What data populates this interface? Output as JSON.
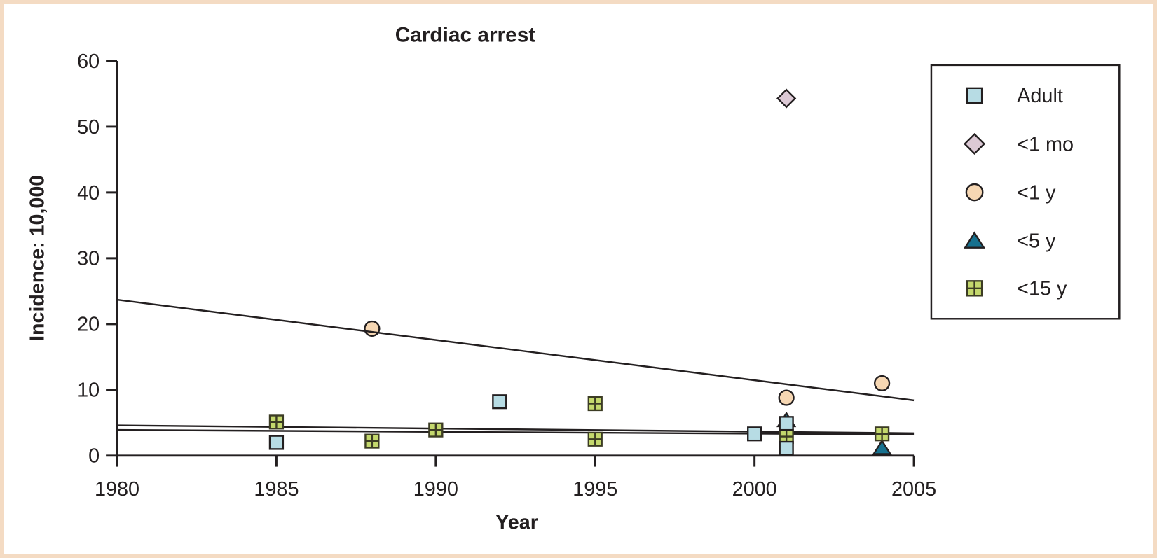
{
  "figure": {
    "frame_color": "#f4dbc3",
    "background": "#ffffff",
    "ink_color": "#231f20"
  },
  "chart_data": {
    "type": "scatter",
    "title": "Cardiac arrest",
    "xlabel": "Year",
    "ylabel": "Incidence: 10,000",
    "xlim": [
      1980,
      2005
    ],
    "ylim": [
      0,
      60
    ],
    "xticks": [
      "1980",
      "1985",
      "1990",
      "1995",
      "2000",
      "2005"
    ],
    "yticks": [
      "0",
      "10",
      "20",
      "30",
      "40",
      "50",
      "60"
    ],
    "grid": false,
    "legend_position": "top-right",
    "series": [
      {
        "name": "Adult",
        "marker": "square",
        "fill": "#b7dce4",
        "stroke": "#231f20",
        "points": [
          [
            1985,
            2.0
          ],
          [
            1992,
            8.2
          ],
          [
            2000,
            3.3
          ],
          [
            2001,
            4.9
          ],
          [
            2001,
            1.1
          ]
        ]
      },
      {
        "name": "<1 mo",
        "marker": "diamond",
        "fill": "#dcc9d5",
        "stroke": "#231f20",
        "points": [
          [
            2001,
            54.3
          ]
        ]
      },
      {
        "name": "<1 y",
        "marker": "circle",
        "fill": "#f6d7b3",
        "stroke": "#231f20",
        "points": [
          [
            1988,
            19.3
          ],
          [
            2001,
            8.8
          ],
          [
            2004,
            11.0
          ]
        ]
      },
      {
        "name": "<5 y",
        "marker": "triangle",
        "fill": "#17718f",
        "stroke": "#231f20",
        "points": [
          [
            2001,
            5.4
          ],
          [
            2004,
            1.2
          ]
        ]
      },
      {
        "name": "<15 y",
        "marker": "cross-square",
        "fill": "#c4d86d",
        "stroke": "#3c3c24",
        "points": [
          [
            1985,
            5.1
          ],
          [
            1988,
            2.2
          ],
          [
            1990,
            3.9
          ],
          [
            1995,
            7.9
          ],
          [
            1995,
            2.5
          ],
          [
            2001,
            2.9
          ],
          [
            2004,
            3.3
          ]
        ]
      }
    ],
    "trend_lines": [
      {
        "series": "<1 y",
        "from": [
          1980,
          23.7
        ],
        "to": [
          2005,
          8.4
        ]
      },
      {
        "series": "Adult",
        "from": [
          1980,
          4.6
        ],
        "to": [
          2005,
          3.4
        ]
      },
      {
        "series": "<15 y",
        "from": [
          1980,
          3.9
        ],
        "to": [
          2005,
          3.2
        ]
      }
    ]
  }
}
